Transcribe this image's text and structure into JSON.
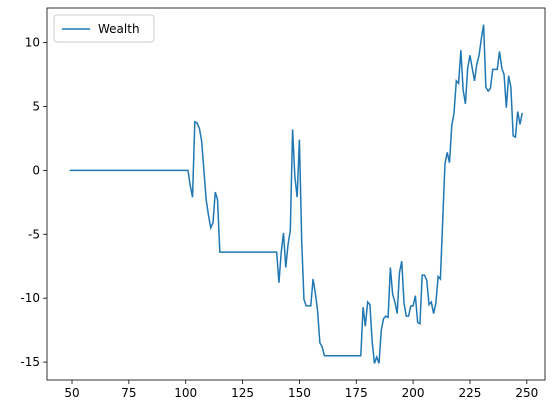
{
  "chart_data": {
    "type": "line",
    "x": [
      49,
      101,
      102,
      103,
      104,
      105,
      106,
      107,
      108,
      109,
      110,
      111,
      112,
      113,
      114,
      115,
      140,
      141,
      142,
      143,
      144,
      145,
      146,
      147,
      148,
      149,
      150,
      151,
      152,
      153,
      155,
      156,
      157,
      158,
      159,
      160,
      161,
      177,
      178,
      179,
      180,
      181,
      182,
      183,
      184,
      185,
      186,
      187,
      188,
      189,
      190,
      191,
      192,
      193,
      194,
      195,
      196,
      197,
      198,
      199,
      200,
      201,
      202,
      203,
      204,
      205,
      206,
      207,
      208,
      209,
      210,
      211,
      212,
      213,
      214,
      215,
      216,
      217,
      218,
      219,
      220,
      221,
      222,
      223,
      224,
      225,
      226,
      227,
      228,
      229,
      230,
      231,
      232,
      233,
      234,
      235,
      237,
      238,
      239,
      240,
      241,
      242,
      243,
      244,
      245,
      246,
      247,
      248
    ],
    "series": [
      {
        "name": "Wealth",
        "color": "#1f77b4",
        "values": [
          0,
          0,
          -1.2,
          -2.1,
          3.8,
          3.7,
          3.3,
          2.3,
          0,
          -2.3,
          -3.5,
          -4.5,
          -4.1,
          -1.7,
          -2.3,
          -6.4,
          -6.4,
          -8.8,
          -6.4,
          -4.9,
          -7.6,
          -5.8,
          -4.7,
          3.2,
          -0.5,
          -2.1,
          2.4,
          -5.5,
          -10.1,
          -10.6,
          -10.6,
          -8.5,
          -9.6,
          -11,
          -13.5,
          -13.8,
          -14.5,
          -14.5,
          -10.7,
          -12.2,
          -10.3,
          -10.5,
          -13.4,
          -15.1,
          -14.6,
          -15.1,
          -12.5,
          -11.6,
          -11.4,
          -11.5,
          -7.6,
          -9.7,
          -10.3,
          -11.2,
          -8,
          -7.1,
          -10.4,
          -11.4,
          -11.4,
          -10.6,
          -10.6,
          -9.8,
          -11.9,
          -12,
          -8.2,
          -8.2,
          -8.6,
          -10.5,
          -10.3,
          -11.2,
          -10.4,
          -8.3,
          -8.5,
          -4,
          0.5,
          1.4,
          0.6,
          3.5,
          4.5,
          7,
          6.8,
          9.4,
          6.3,
          5.2,
          8,
          9,
          8,
          7,
          8.3,
          9,
          10.3,
          11.4,
          6.5,
          6.2,
          6.4,
          7.9,
          7.9,
          9.3,
          8,
          7.5,
          4.9,
          7.4,
          6.5,
          2.7,
          2.6,
          4.6,
          3.6,
          4.5
        ]
      }
    ],
    "xlim": [
      39,
      258
    ],
    "ylim": [
      -16.4,
      12.7
    ],
    "xticks": [
      50,
      75,
      100,
      125,
      150,
      175,
      200,
      225,
      250
    ],
    "yticks": [
      -15,
      -10,
      -5,
      0,
      5,
      10
    ],
    "legend": "upper left"
  }
}
